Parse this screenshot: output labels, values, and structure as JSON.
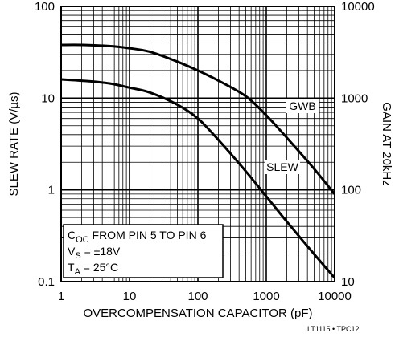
{
  "chart_data": {
    "type": "line",
    "x_scale": "log",
    "y_scale": "log",
    "x": [
      1,
      2,
      5,
      10,
      20,
      50,
      100,
      200,
      500,
      1000,
      2000,
      5000,
      10000
    ],
    "series": [
      {
        "name": "SLEW",
        "axis": "left",
        "values": [
          16,
          15.5,
          14.5,
          13,
          11.5,
          8.5,
          6,
          3.5,
          1.6,
          0.85,
          0.45,
          0.2,
          0.11
        ]
      },
      {
        "name": "GWB",
        "axis": "right",
        "values": [
          3800,
          3800,
          3700,
          3500,
          3200,
          2500,
          2000,
          1550,
          1050,
          650,
          370,
          170,
          90
        ]
      }
    ],
    "xlabel": "OVERCOMPENSATION CAPACITOR (pF)",
    "ylabel_left": "SLEW RATE (V/µs)",
    "ylabel_right": "GAIN AT 20kHz",
    "xlim": [
      1,
      10000
    ],
    "ylim_left": [
      0.1,
      100
    ],
    "ylim_right": [
      10,
      10000
    ],
    "x_tick_labels": [
      "1",
      "10",
      "100",
      "1000",
      "10000"
    ],
    "y_left_tick_labels": [
      "0.1",
      "1",
      "10",
      "100"
    ],
    "y_right_tick_labels": [
      "10",
      "100",
      "1000",
      "10000"
    ],
    "grid": true,
    "annotation": {
      "line1": {
        "main": "C",
        "sub": "OC",
        "rest": " FROM PIN 5 TO PIN 6"
      },
      "line2": {
        "main": "V",
        "sub": "S",
        "rest": " = ±18V"
      },
      "line3": {
        "main": "T",
        "sub": "A",
        "rest": " = 25°C"
      }
    },
    "figure_code": "LT1115 • TPC12"
  }
}
